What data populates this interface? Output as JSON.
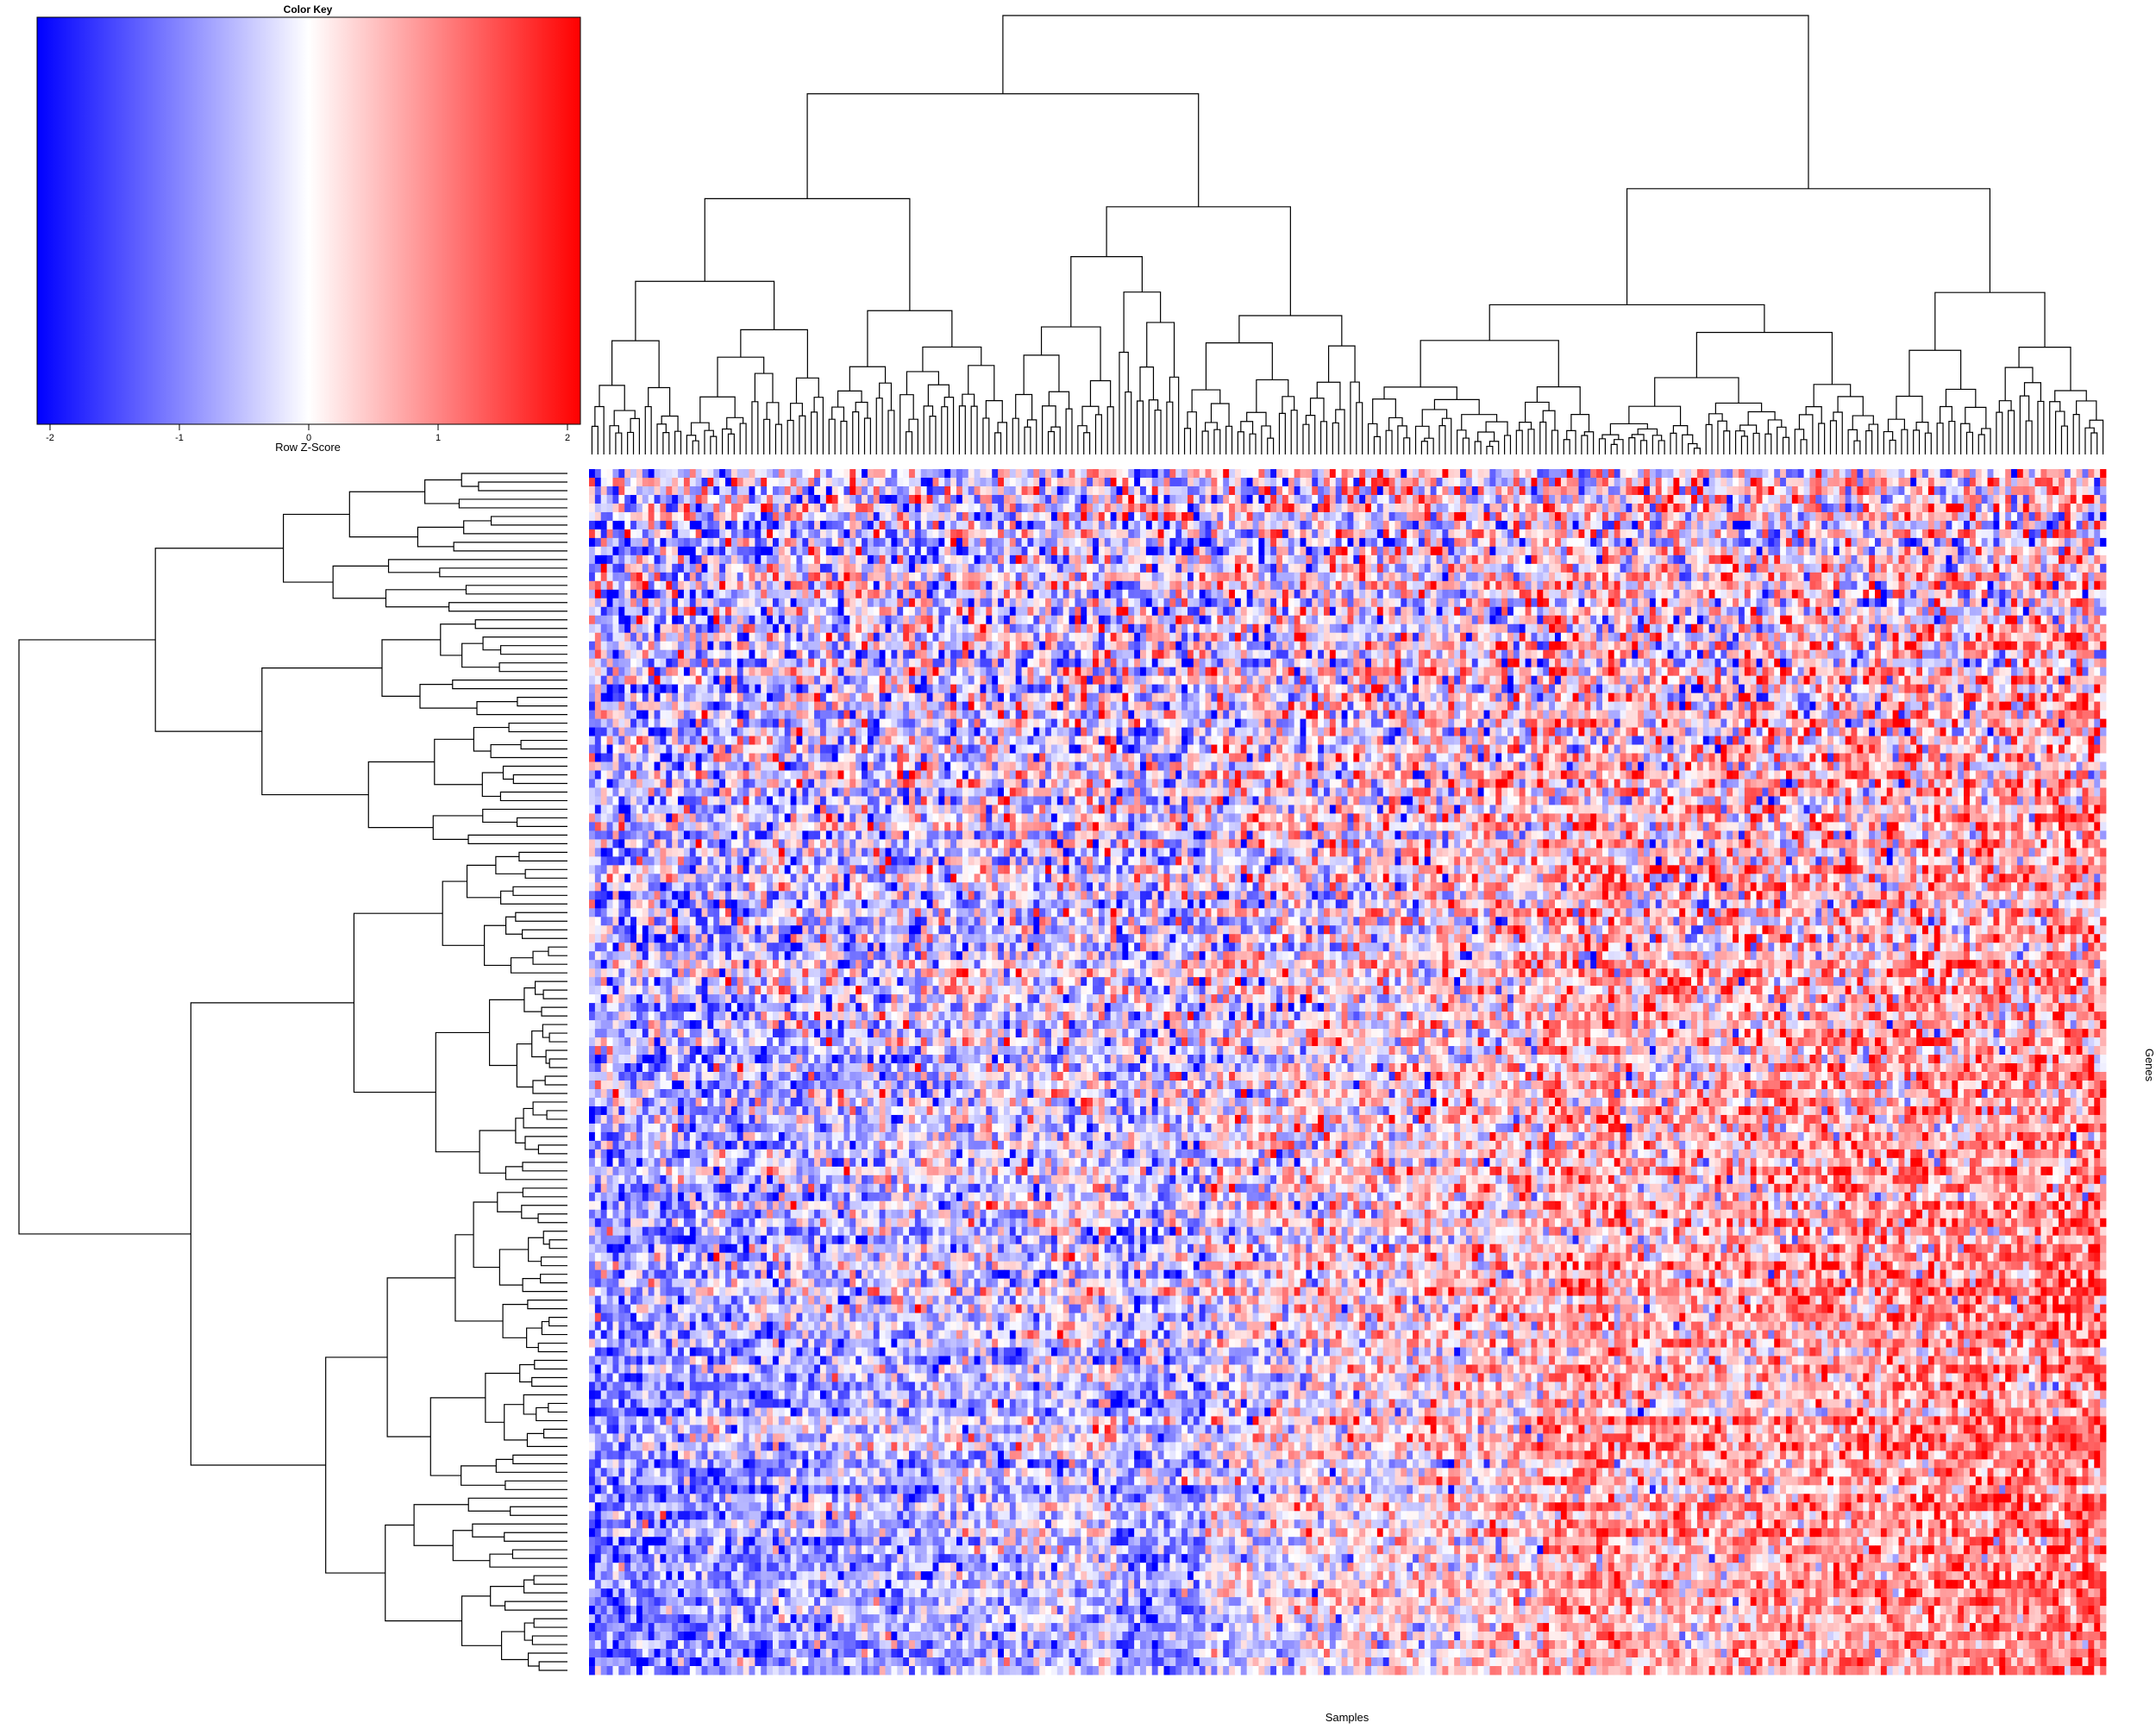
{
  "chart_data": {
    "type": "heatmap",
    "title": "",
    "xlabel": "Samples",
    "ylabel": "Genes",
    "n_samples": 256,
    "n_genes": 140,
    "color_key": {
      "title": "Color Key",
      "label": "Row Z-Score",
      "range": [
        -2.1,
        2.1
      ],
      "ticks": [
        -2,
        -1,
        0,
        1,
        2
      ],
      "tick_labels": [
        "-2",
        "-1",
        "0",
        "1",
        "2"
      ],
      "low_color": "#0000ff",
      "mid_color": "#ffffff",
      "high_color": "#ff0000"
    },
    "column_dendrogram": true,
    "row_dendrogram": true,
    "dominant_pattern": "left columns mostly low (blue), right columns mostly high (red), lower rows strongest contrast"
  }
}
